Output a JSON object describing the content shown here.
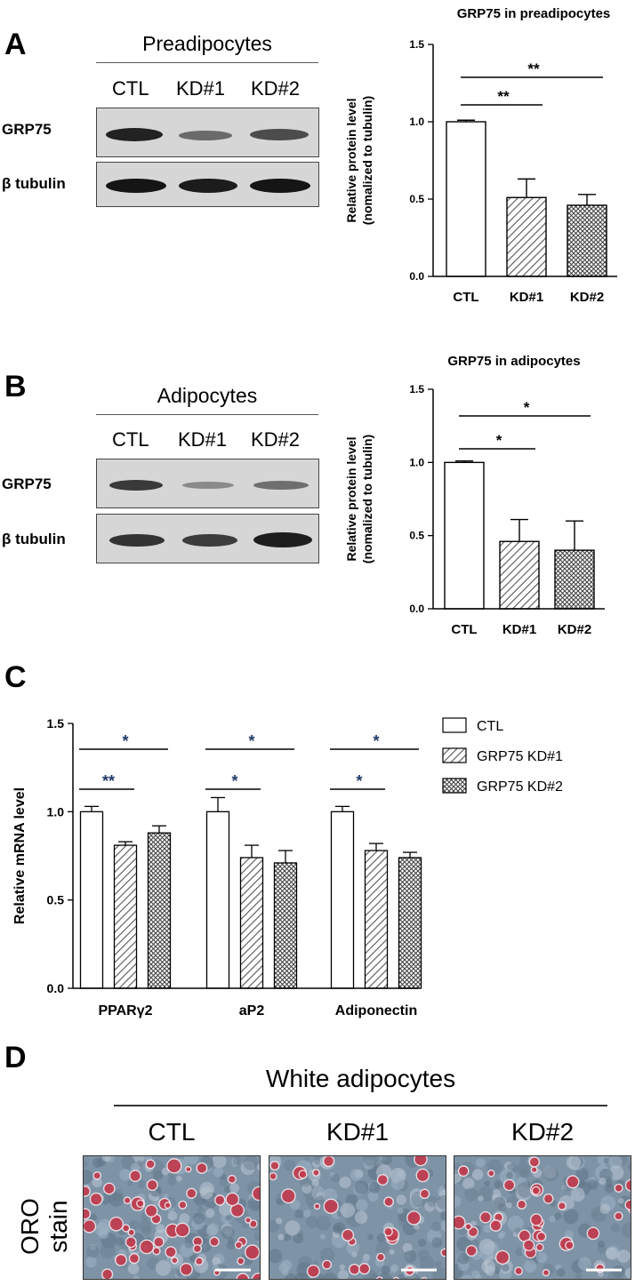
{
  "panels": {
    "A": {
      "letter": "A",
      "blot": {
        "title": "Preadipocytes",
        "lanes": [
          "CTL",
          "KD#1",
          "KD#2"
        ],
        "rows": [
          "GRP75",
          "β tubulin"
        ]
      }
    },
    "B": {
      "letter": "B",
      "blot": {
        "title": "Adipocytes",
        "lanes": [
          "CTL",
          "KD#1",
          "KD#2"
        ],
        "rows": [
          "GRP75",
          "β tubulin"
        ]
      }
    },
    "C": {
      "letter": "C"
    },
    "D": {
      "letter": "D",
      "header": "White adipocytes",
      "lanes": [
        "CTL",
        "KD#1",
        "KD#2"
      ],
      "row_label_line1": "ORO",
      "row_label_line2": "stain"
    }
  },
  "chart_data": [
    {
      "id": "A",
      "type": "bar",
      "title": "GRP75 in preadipocytes",
      "ylabel_line1": "Relative protein level",
      "ylabel_line2": "(nomalized to tubulin)",
      "categories": [
        "CTL",
        "KD#1",
        "KD#2"
      ],
      "values": [
        1.0,
        0.51,
        0.46
      ],
      "errors": [
        0.01,
        0.12,
        0.07
      ],
      "ylim": [
        0,
        1.5
      ],
      "yticks": [
        "0.0",
        "0.5",
        "1.0",
        "1.5"
      ],
      "significance": [
        {
          "from": 0,
          "to": 1,
          "label": "**"
        },
        {
          "from": 0,
          "to": 2,
          "label": "**"
        }
      ]
    },
    {
      "id": "B",
      "type": "bar",
      "title": "GRP75 in adipocytes",
      "ylabel_line1": "Relative protein level",
      "ylabel_line2": "(nomalized to tubulin)",
      "categories": [
        "CTL",
        "KD#1",
        "KD#2"
      ],
      "values": [
        1.0,
        0.46,
        0.4
      ],
      "errors": [
        0.01,
        0.15,
        0.2
      ],
      "ylim": [
        0,
        1.5
      ],
      "yticks": [
        "0.0",
        "0.5",
        "1.0",
        "1.5"
      ],
      "significance": [
        {
          "from": 0,
          "to": 1,
          "label": "*"
        },
        {
          "from": 0,
          "to": 2,
          "label": "*"
        }
      ]
    },
    {
      "id": "C",
      "type": "bar",
      "ylabel": "Relative mRNA level",
      "categories": [
        "PPARγ2",
        "aP2",
        "Adiponectin"
      ],
      "series": [
        {
          "name": "CTL",
          "values": [
            1.0,
            1.0,
            1.0
          ],
          "errors": [
            0.03,
            0.08,
            0.03
          ]
        },
        {
          "name": "GRP75 KD#1",
          "values": [
            0.81,
            0.74,
            0.78
          ],
          "errors": [
            0.02,
            0.07,
            0.04
          ]
        },
        {
          "name": "GRP75 KD#2",
          "values": [
            0.88,
            0.71,
            0.74
          ],
          "errors": [
            0.04,
            0.07,
            0.03
          ]
        }
      ],
      "ylim": [
        0,
        1.5
      ],
      "yticks": [
        "0.0",
        "0.5",
        "1.0",
        "1.5"
      ],
      "significance": [
        {
          "group": 0,
          "from": 0,
          "to": 1,
          "label": "**"
        },
        {
          "group": 0,
          "from": 0,
          "to": 2,
          "label": "*"
        },
        {
          "group": 1,
          "from": 0,
          "to": 1,
          "label": "*"
        },
        {
          "group": 1,
          "from": 0,
          "to": 2,
          "label": "*"
        },
        {
          "group": 2,
          "from": 0,
          "to": 1,
          "label": "*"
        },
        {
          "group": 2,
          "from": 0,
          "to": 2,
          "label": "*"
        }
      ],
      "legend": "top-right"
    }
  ]
}
